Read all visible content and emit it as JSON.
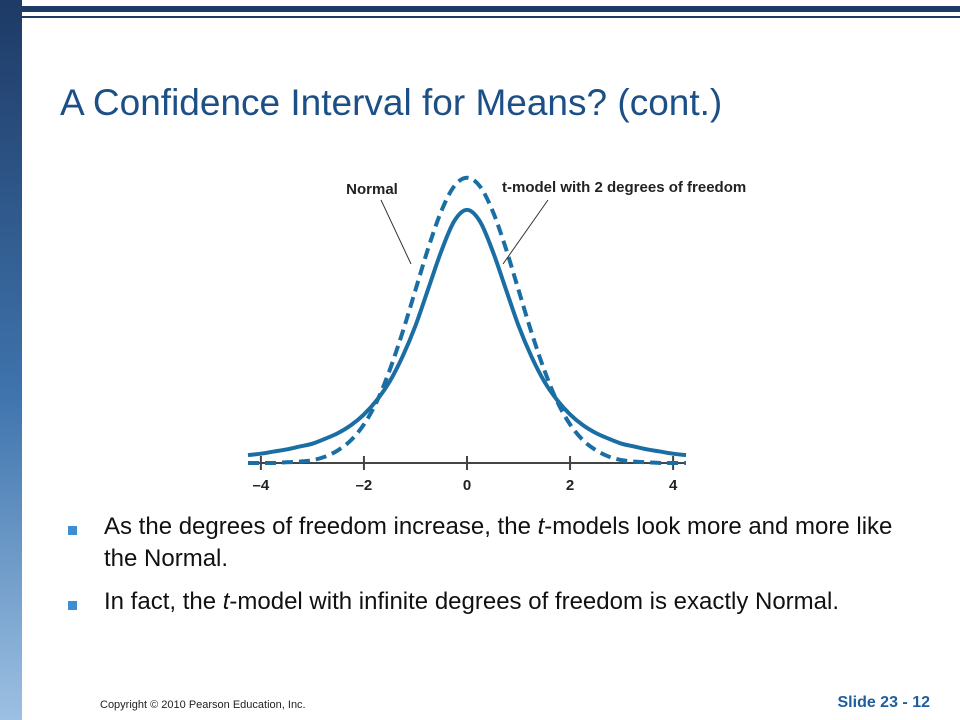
{
  "title": "A Confidence Interval for Means? (cont.)",
  "chart_data": {
    "type": "line",
    "x": [
      -4.25,
      -4,
      -3.75,
      -3.5,
      -3.25,
      -3,
      -2.75,
      -2.5,
      -2.25,
      -2,
      -1.75,
      -1.5,
      -1.25,
      -1,
      -0.75,
      -0.5,
      -0.25,
      0,
      0.25,
      0.5,
      0.75,
      1,
      1.25,
      1.5,
      1.75,
      2,
      2.25,
      2.5,
      2.75,
      3,
      3.25,
      3.5,
      3.75,
      4,
      4.25
    ],
    "series": [
      {
        "name": "Normal",
        "color": "#1b6ea3",
        "line_style": "dashed",
        "values": [
          0,
          0,
          0,
          0.001,
          0.002,
          0.004,
          0.009,
          0.018,
          0.032,
          0.054,
          0.086,
          0.13,
          0.183,
          0.242,
          0.301,
          0.352,
          0.387,
          0.399,
          0.387,
          0.352,
          0.301,
          0.242,
          0.183,
          0.13,
          0.086,
          0.054,
          0.032,
          0.018,
          0.009,
          0.004,
          0.002,
          0.001,
          0,
          0,
          0
        ]
      },
      {
        "name": "t-model with 2 degrees of freedom",
        "color": "#1b6ea3",
        "line_style": "solid",
        "values": [
          0.011,
          0.013,
          0.016,
          0.019,
          0.023,
          0.027,
          0.034,
          0.042,
          0.053,
          0.068,
          0.088,
          0.114,
          0.149,
          0.192,
          0.244,
          0.296,
          0.338,
          0.354,
          0.338,
          0.296,
          0.244,
          0.192,
          0.149,
          0.114,
          0.088,
          0.068,
          0.053,
          0.042,
          0.034,
          0.027,
          0.023,
          0.019,
          0.016,
          0.013,
          0.011
        ]
      }
    ],
    "xlim": [
      -4.25,
      4.25
    ],
    "ylim": [
      0,
      0.4
    ],
    "xticks": [
      {
        "value": -4,
        "label": "–4"
      },
      {
        "value": -2,
        "label": "–2"
      },
      0,
      2,
      4
    ]
  },
  "bullets": [
    [
      "As the degrees of freedom increase, the ",
      "t",
      "-models look more and more like the Normal."
    ],
    [
      "In fact, the ",
      "t",
      "-model with infinite degrees of freedom is exactly Normal."
    ]
  ],
  "footer": {
    "copyright": "Copyright © 2010 Pearson Education, Inc.",
    "slide": "Slide 23 - 12"
  }
}
